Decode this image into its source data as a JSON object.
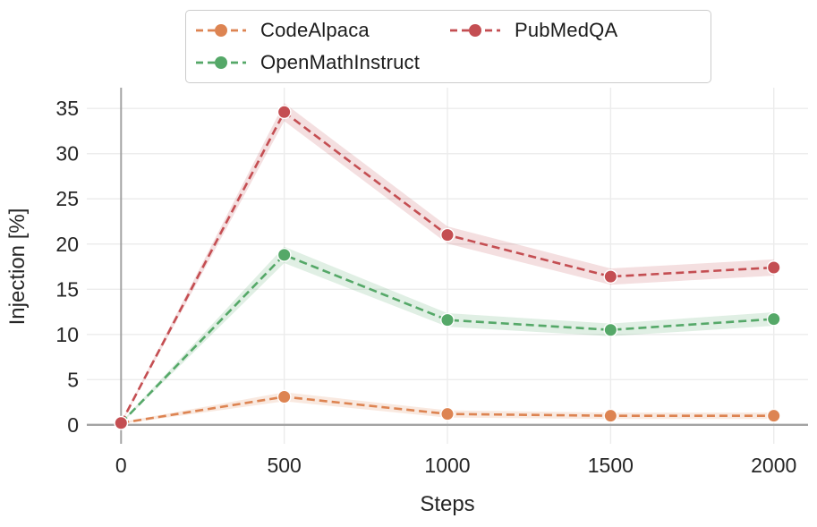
{
  "figure": {
    "background": "#ffffff"
  },
  "chart_data": {
    "type": "line",
    "title": "",
    "xlabel": "Steps",
    "ylabel": "Injection [%]",
    "x": [
      0,
      500,
      1000,
      1500,
      2000
    ],
    "xtick_labels": [
      "0",
      "500",
      "1000",
      "1500",
      "2000"
    ],
    "ytick_values": [
      0,
      5,
      10,
      15,
      20,
      25,
      30,
      35
    ],
    "ytick_labels": [
      "0",
      "5",
      "10",
      "15",
      "20",
      "25",
      "30",
      "35"
    ],
    "xlim": [
      -105,
      2105
    ],
    "ylim": [
      -2.1,
      37.3
    ],
    "grid": true,
    "line_style": "dashed",
    "marker": "circle",
    "legend": {
      "position": "top-center",
      "ncol": 2,
      "order": [
        "CodeAlpaca",
        "OpenMathInstruct",
        "PubMedQA"
      ]
    },
    "series": [
      {
        "name": "CodeAlpaca",
        "color": "#dd8452",
        "values": [
          0.2,
          3.1,
          1.2,
          1.0,
          1.0
        ],
        "band": [
          0.1,
          0.5,
          0.4,
          0.35,
          0.35
        ]
      },
      {
        "name": "OpenMathInstruct",
        "color": "#55a868",
        "values": [
          0.2,
          18.8,
          11.6,
          10.5,
          11.7
        ],
        "band": [
          0.1,
          0.9,
          0.75,
          0.7,
          0.75
        ]
      },
      {
        "name": "PubMedQA",
        "color": "#c44e52",
        "values": [
          0.2,
          34.6,
          21.0,
          16.4,
          17.4
        ],
        "band": [
          0.1,
          1.0,
          0.95,
          0.9,
          0.9
        ]
      }
    ],
    "style": {
      "grid_color": "#ececec",
      "axis_line_color": "#a3a3a3",
      "tick_text_color": "#262626",
      "marker_edge_color": "#ffffff",
      "band_opacity": 0.18,
      "legend_border_color": "#cccccc"
    }
  }
}
